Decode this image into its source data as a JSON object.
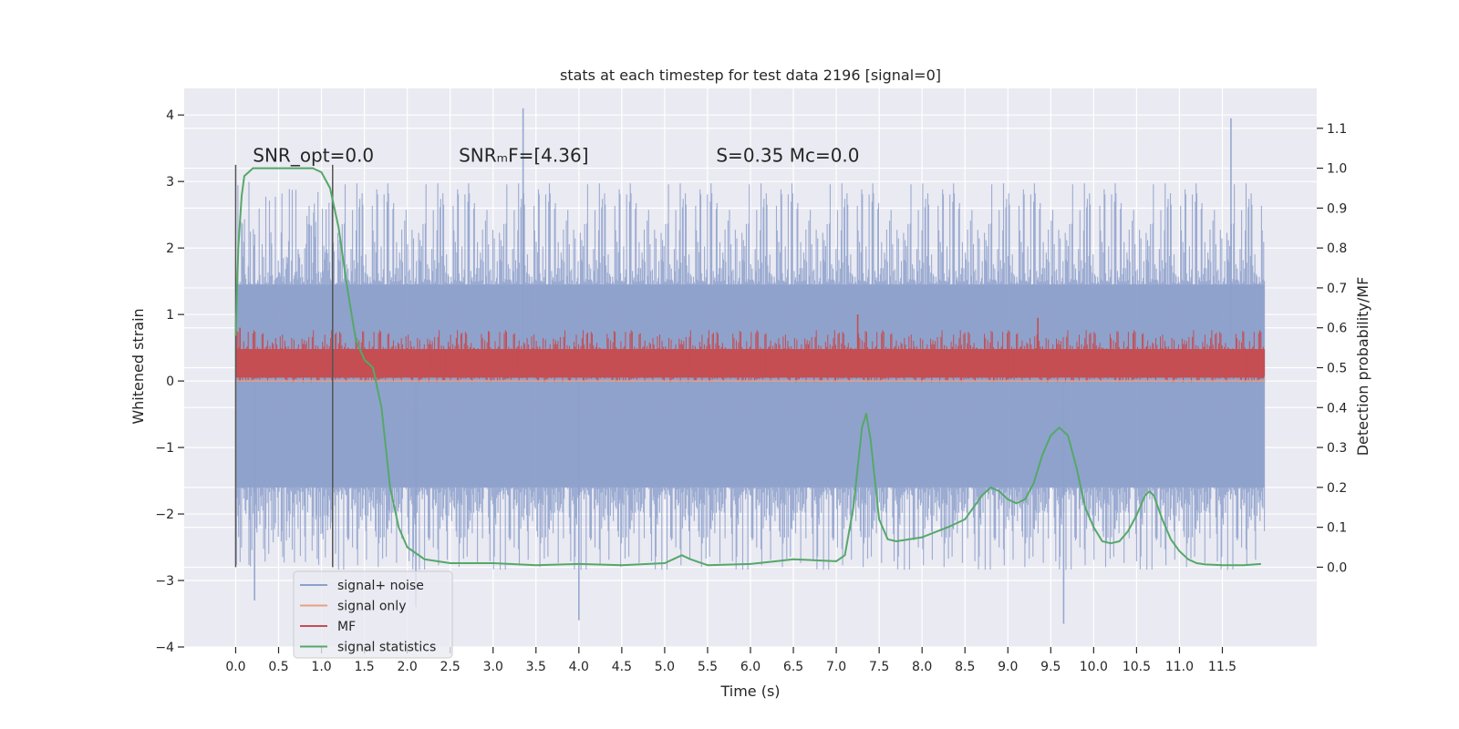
{
  "chart_data": {
    "type": "line",
    "title": "stats at each timestep for test data 2196 [signal=0]",
    "xlabel": "Time (s)",
    "ylabel": "Whitened strain",
    "ylabel_right": "Detection probability/MF",
    "xlim": [
      -0.6,
      12.6
    ],
    "ylim": [
      -4.0,
      4.4
    ],
    "ylim_right": [
      -0.2,
      1.2
    ],
    "x_ticks": [
      "0.0",
      "0.5",
      "1.0",
      "1.5",
      "2.0",
      "2.5",
      "3.0",
      "3.5",
      "4.0",
      "4.5",
      "5.0",
      "5.5",
      "6.0",
      "6.5",
      "7.0",
      "7.5",
      "8.0",
      "8.5",
      "9.0",
      "9.5",
      "10.0",
      "10.5",
      "11.0",
      "11.5"
    ],
    "y_ticks": [
      "−4",
      "−3",
      "−2",
      "−1",
      "0",
      "1",
      "2",
      "3",
      "4"
    ],
    "y_ticks_right": [
      "0.0",
      "0.1",
      "0.2",
      "0.3",
      "0.4",
      "0.5",
      "0.6",
      "0.7",
      "0.8",
      "0.9",
      "1.0",
      "1.1"
    ],
    "grid": true,
    "background": "#eaeaf2",
    "vertical_lines": [
      0.0,
      1.13
    ],
    "vertical_line_range": [
      -2.8,
      3.25
    ],
    "annotations": [
      {
        "x": 0.2,
        "y": 3.3,
        "text": "SNR_opt=0.0"
      },
      {
        "x": 2.6,
        "y": 3.3,
        "text": "SNRₘF=[4.36]"
      },
      {
        "x": 5.6,
        "y": 3.3,
        "text": "S=0.35   Mc=0.0"
      }
    ],
    "legend": {
      "position": "lower-left",
      "entries": [
        {
          "label": "signal+ noise",
          "color": "#8da0cb"
        },
        {
          "label": "signal only",
          "color": "#e8a080"
        },
        {
          "label": "MF",
          "color": "#c44e52"
        },
        {
          "label": "signal statistics",
          "color": "#55a868"
        }
      ]
    },
    "series": [
      {
        "name": "signal+ noise",
        "color": "#8da0cb",
        "style": "noise-band",
        "x_range": [
          0.0,
          11.99
        ],
        "core_range": [
          -1.6,
          1.45
        ],
        "extreme_range": [
          -3.65,
          4.1
        ],
        "peaks": [
          [
            3.35,
            4.1
          ],
          [
            11.6,
            3.95
          ],
          [
            4.0,
            -3.6
          ],
          [
            9.65,
            -3.65
          ],
          [
            0.22,
            -3.3
          ],
          [
            2.1,
            -3.4
          ]
        ]
      },
      {
        "name": "signal only",
        "color": "#e8a080",
        "style": "line",
        "x": [
          0.0,
          12.0
        ],
        "y": [
          0.0,
          0.0
        ]
      },
      {
        "name": "MF",
        "color": "#c44e52",
        "style": "band",
        "x_range": [
          0.0,
          11.99
        ],
        "range": [
          0.0,
          0.6
        ],
        "peaks": [
          [
            7.25,
            1.0
          ],
          [
            9.35,
            0.95
          ],
          [
            0.05,
            0.8
          ]
        ]
      },
      {
        "name": "signal statistics",
        "color": "#55a868",
        "axis": "right",
        "x": [
          0.0,
          0.03,
          0.07,
          0.1,
          0.15,
          0.2,
          0.3,
          0.5,
          0.7,
          0.9,
          1.0,
          1.1,
          1.2,
          1.3,
          1.4,
          1.5,
          1.6,
          1.7,
          1.8,
          1.9,
          2.0,
          2.2,
          2.5,
          3.0,
          3.5,
          4.0,
          4.5,
          5.0,
          5.1,
          5.2,
          5.3,
          5.5,
          6.0,
          6.3,
          6.5,
          7.0,
          7.1,
          7.2,
          7.3,
          7.35,
          7.4,
          7.5,
          7.6,
          7.7,
          8.0,
          8.3,
          8.5,
          8.6,
          8.7,
          8.8,
          8.9,
          9.0,
          9.1,
          9.2,
          9.3,
          9.4,
          9.5,
          9.6,
          9.7,
          9.8,
          9.9,
          10.0,
          10.1,
          10.2,
          10.3,
          10.4,
          10.5,
          10.6,
          10.65,
          10.7,
          10.8,
          10.9,
          11.0,
          11.1,
          11.2,
          11.3,
          11.5,
          11.75,
          11.95
        ],
        "y": [
          0.58,
          0.8,
          0.93,
          0.98,
          0.99,
          1.0,
          1.0,
          1.0,
          1.0,
          1.0,
          0.99,
          0.95,
          0.85,
          0.7,
          0.57,
          0.52,
          0.5,
          0.4,
          0.2,
          0.1,
          0.05,
          0.02,
          0.01,
          0.01,
          0.005,
          0.008,
          0.005,
          0.01,
          0.02,
          0.03,
          0.02,
          0.005,
          0.008,
          0.015,
          0.02,
          0.015,
          0.03,
          0.15,
          0.35,
          0.385,
          0.32,
          0.12,
          0.07,
          0.065,
          0.075,
          0.1,
          0.12,
          0.15,
          0.18,
          0.2,
          0.19,
          0.17,
          0.16,
          0.17,
          0.21,
          0.28,
          0.33,
          0.35,
          0.33,
          0.25,
          0.15,
          0.1,
          0.065,
          0.06,
          0.065,
          0.09,
          0.13,
          0.18,
          0.19,
          0.18,
          0.12,
          0.07,
          0.04,
          0.02,
          0.01,
          0.007,
          0.005,
          0.005,
          0.008
        ]
      }
    ]
  }
}
